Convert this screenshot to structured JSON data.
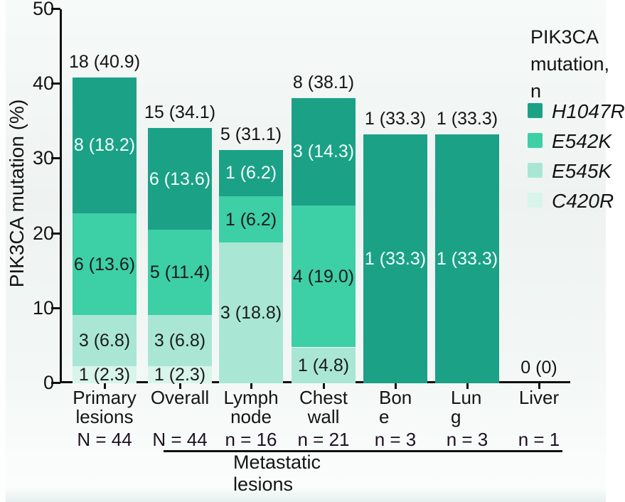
{
  "colors": {
    "H1047R": "#1ba186",
    "E542K": "#3dcfa6",
    "E545K": "#a9e7d4",
    "C420R": "#d8f4eb",
    "axis": "#101010",
    "text": "#141414",
    "background": "#f0f4f3",
    "inner_label_light": "#f2fffc",
    "inner_label_dark": "#1b1b1b"
  },
  "y_axis": {
    "title": "PIK3CA mutation (%)",
    "ticks": [
      0,
      10,
      20,
      30,
      40,
      50
    ],
    "max": 50
  },
  "legend": {
    "title": "PIK3CA mutation, n",
    "items": [
      {
        "label": "H1047R",
        "mutation": "H1047R"
      },
      {
        "label": "E542K",
        "mutation": "E542K"
      },
      {
        "label": "E545K",
        "mutation": "E545K"
      },
      {
        "label": "C420R",
        "mutation": "C420R"
      }
    ]
  },
  "footer": {
    "metastatic_label": "Metastatic lesions"
  },
  "chart_data": {
    "type": "bar",
    "stacked": true,
    "title": "",
    "xlabel": "",
    "ylabel": "PIK3CA mutation (%)",
    "ylim": [
      0,
      50
    ],
    "grid": false,
    "legend_position": "right",
    "categories": [
      "Primary lesions",
      "Overall",
      "Lymph node",
      "Chest wall",
      "Bone",
      "Lung",
      "Liver"
    ],
    "series": [
      {
        "name": "H1047R",
        "values": [
          18.2,
          13.6,
          6.2,
          14.3,
          33.3,
          33.3,
          0
        ],
        "counts": [
          8,
          6,
          1,
          3,
          1,
          1,
          0
        ]
      },
      {
        "name": "E542K",
        "values": [
          13.6,
          11.4,
          6.2,
          19.0,
          0,
          0,
          0
        ],
        "counts": [
          6,
          5,
          1,
          4,
          0,
          0,
          0
        ]
      },
      {
        "name": "E545K",
        "values": [
          6.8,
          6.8,
          18.8,
          4.8,
          0,
          0,
          0
        ],
        "counts": [
          3,
          3,
          3,
          1,
          0,
          0,
          0
        ]
      },
      {
        "name": "C420R",
        "values": [
          2.3,
          2.3,
          0,
          0,
          0,
          0,
          0
        ],
        "counts": [
          1,
          1,
          0,
          0,
          0,
          0,
          0
        ]
      }
    ],
    "bars": [
      {
        "category": "Primary lesions",
        "label_lines": [
          "Primary",
          "lesions"
        ],
        "align": "center",
        "n_label": "N = 44",
        "total_label": "18 (40.9)",
        "segments": [
          {
            "mutation": "C420R",
            "pct": 2.3,
            "label": "1 (2.3)",
            "label_tone": "dark"
          },
          {
            "mutation": "E545K",
            "pct": 6.8,
            "label": "3 (6.8)",
            "label_tone": "dark"
          },
          {
            "mutation": "E542K",
            "pct": 13.6,
            "label": "6 (13.6)",
            "label_tone": "dark"
          },
          {
            "mutation": "H1047R",
            "pct": 18.2,
            "label": "8 (18.2)",
            "label_tone": "light"
          }
        ]
      },
      {
        "category": "Overall",
        "label_lines": [
          "Overall"
        ],
        "align": "center",
        "n_label": "N = 44",
        "total_label": "15 (34.1)",
        "segments": [
          {
            "mutation": "C420R",
            "pct": 2.3,
            "label": "1 (2.3)",
            "label_tone": "dark"
          },
          {
            "mutation": "E545K",
            "pct": 6.8,
            "label": "3 (6.8)",
            "label_tone": "dark"
          },
          {
            "mutation": "E542K",
            "pct": 11.4,
            "label": "5 (11.4)",
            "label_tone": "dark"
          },
          {
            "mutation": "H1047R",
            "pct": 13.6,
            "label": "6 (13.6)",
            "label_tone": "light"
          }
        ]
      },
      {
        "category": "Lymph node",
        "label_lines": [
          "Lymph",
          "node"
        ],
        "align": "center",
        "n_label": "n = 16",
        "total_label": "5 (31.1)",
        "segments": [
          {
            "mutation": "E545K",
            "pct": 18.8,
            "label": "3 (18.8)",
            "label_tone": "dark"
          },
          {
            "mutation": "E542K",
            "pct": 6.2,
            "label": "1 (6.2)",
            "label_tone": "dark"
          },
          {
            "mutation": "H1047R",
            "pct": 6.2,
            "label": "1 (6.2)",
            "label_tone": "light"
          }
        ]
      },
      {
        "category": "Chest wall",
        "label_lines": [
          "Chest",
          "wall"
        ],
        "align": "center",
        "n_label": "n = 21",
        "total_label": "8 (38.1)",
        "segments": [
          {
            "mutation": "E545K",
            "pct": 4.8,
            "label": "1 (4.8)",
            "label_tone": "dark"
          },
          {
            "mutation": "E542K",
            "pct": 19.0,
            "label": "4 (19.0)",
            "label_tone": "dark"
          },
          {
            "mutation": "H1047R",
            "pct": 14.3,
            "label": "3 (14.3)",
            "label_tone": "light"
          }
        ]
      },
      {
        "category": "Bone",
        "label_lines": [
          "Bon",
          "e"
        ],
        "align": "left",
        "n_label": "n = 3",
        "total_label": "1 (33.3)",
        "segments": [
          {
            "mutation": "H1047R",
            "pct": 33.3,
            "label": "1 (33.3)",
            "label_tone": "light"
          }
        ]
      },
      {
        "category": "Lung",
        "label_lines": [
          "Lun",
          "g"
        ],
        "align": "left",
        "n_label": "n = 3",
        "total_label": "1 (33.3)",
        "segments": [
          {
            "mutation": "H1047R",
            "pct": 33.3,
            "label": "1 (33.3)",
            "label_tone": "light"
          }
        ]
      },
      {
        "category": "Liver",
        "label_lines": [
          "Liver"
        ],
        "align": "center",
        "n_label": "n = 1",
        "total_label": "0 (0)",
        "segments": []
      }
    ]
  }
}
